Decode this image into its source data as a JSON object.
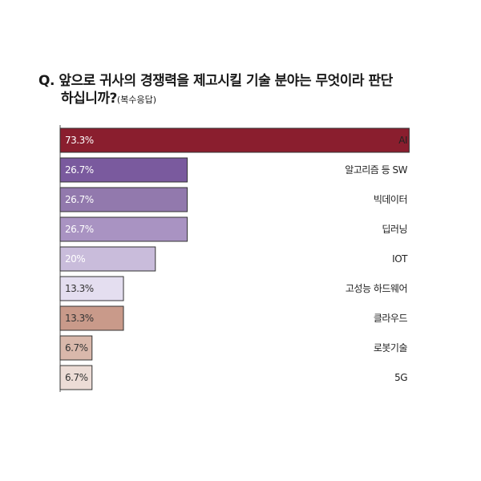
{
  "question": {
    "line1": "Q. 앞으로 귀사의 경쟁력을 제고시킬 기술 분야는 무엇이라 판단",
    "line2": "하십니까?",
    "note": "(복수응답)"
  },
  "chart_data": {
    "type": "bar",
    "orientation": "horizontal",
    "title": "",
    "xlabel": "",
    "ylabel": "",
    "xlim": [
      0,
      100
    ],
    "grid": false,
    "categories": [
      "AI",
      "알고리즘 등 SW",
      "빅데이터",
      "딥러닝",
      "IOT",
      "고성능 하드웨어",
      "클라우드",
      "로봇기술",
      "5G"
    ],
    "values": [
      73.3,
      26.7,
      26.7,
      26.7,
      20,
      13.3,
      13.3,
      6.7,
      6.7
    ],
    "value_labels": [
      "73.3%",
      "26.7%",
      "26.7%",
      "26.7%",
      "20%",
      "13.3%",
      "13.3%",
      "6.7%",
      "6.7%"
    ],
    "colors": [
      "#8a1e2e",
      "#7a5a9e",
      "#9279ad",
      "#a993c2",
      "#c9bcdb",
      "#e4def0",
      "#c99a8a",
      "#d9b8ab",
      "#ecdcd6"
    ],
    "label_colors": [
      "#ffffff",
      "#ffffff",
      "#ffffff",
      "#ffffff",
      "#ffffff",
      "#333333",
      "#333333",
      "#333333",
      "#333333"
    ]
  }
}
